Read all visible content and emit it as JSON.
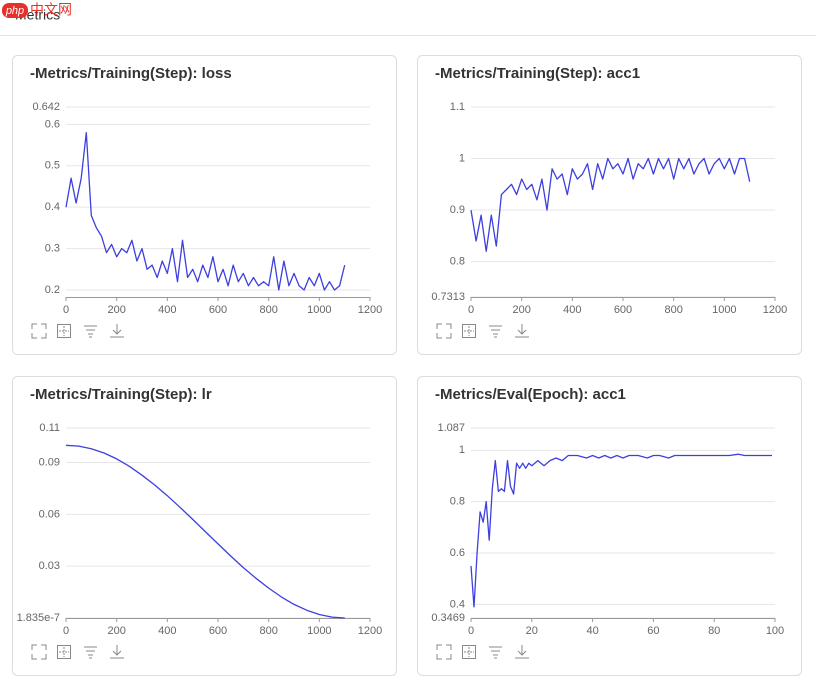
{
  "header": {
    "title": "Metrics",
    "watermark_logo": "php",
    "watermark_text": "中文网"
  },
  "chart_data": [
    {
      "type": "line",
      "title": "-Metrics/Training(Step): loss",
      "color": "#3d3fe0",
      "grid": true,
      "x": [
        0,
        20,
        40,
        60,
        80,
        100,
        120,
        140,
        160,
        180,
        200,
        220,
        240,
        260,
        280,
        300,
        320,
        340,
        360,
        380,
        400,
        420,
        440,
        460,
        480,
        500,
        520,
        540,
        560,
        580,
        600,
        620,
        640,
        660,
        680,
        700,
        720,
        740,
        760,
        780,
        800,
        820,
        840,
        860,
        880,
        900,
        920,
        940,
        960,
        980,
        1000,
        1020,
        1040,
        1060,
        1080,
        1100
      ],
      "values": [
        0.4,
        0.47,
        0.41,
        0.47,
        0.58,
        0.38,
        0.35,
        0.33,
        0.29,
        0.31,
        0.28,
        0.3,
        0.29,
        0.32,
        0.27,
        0.3,
        0.25,
        0.26,
        0.23,
        0.27,
        0.24,
        0.3,
        0.22,
        0.32,
        0.23,
        0.25,
        0.22,
        0.26,
        0.23,
        0.28,
        0.22,
        0.25,
        0.21,
        0.26,
        0.22,
        0.24,
        0.21,
        0.23,
        0.21,
        0.22,
        0.21,
        0.28,
        0.2,
        0.27,
        0.21,
        0.24,
        0.21,
        0.2,
        0.23,
        0.21,
        0.24,
        0.2,
        0.22,
        0.2,
        0.21,
        0.26
      ],
      "xlim": [
        0,
        1200
      ],
      "xticks": [
        0,
        200,
        400,
        600,
        800,
        1000,
        1200
      ],
      "ylim": [
        0.183,
        0.642
      ],
      "yticks": [
        0.2,
        0.3,
        0.4,
        0.5,
        0.6,
        0.642
      ]
    },
    {
      "type": "line",
      "title": "-Metrics/Training(Step): acc1",
      "color": "#3d3fe0",
      "grid": true,
      "x": [
        0,
        20,
        40,
        60,
        80,
        100,
        120,
        140,
        160,
        180,
        200,
        220,
        240,
        260,
        280,
        300,
        320,
        340,
        360,
        380,
        400,
        420,
        440,
        460,
        480,
        500,
        520,
        540,
        560,
        580,
        600,
        620,
        640,
        660,
        680,
        700,
        720,
        740,
        760,
        780,
        800,
        820,
        840,
        860,
        880,
        900,
        920,
        940,
        960,
        980,
        1000,
        1020,
        1040,
        1060,
        1080,
        1100
      ],
      "values": [
        0.9,
        0.84,
        0.89,
        0.82,
        0.89,
        0.83,
        0.93,
        0.94,
        0.95,
        0.93,
        0.96,
        0.94,
        0.95,
        0.92,
        0.96,
        0.9,
        0.98,
        0.96,
        0.97,
        0.93,
        0.98,
        0.96,
        0.97,
        0.99,
        0.94,
        0.99,
        0.96,
        1.0,
        0.98,
        0.99,
        0.97,
        1.0,
        0.96,
        0.99,
        0.98,
        1.0,
        0.97,
        1.0,
        0.98,
        1.0,
        0.96,
        1.0,
        0.98,
        1.0,
        0.97,
        0.99,
        1.0,
        0.97,
        0.99,
        1.0,
        0.98,
        1.0,
        0.97,
        1.0,
        1.0,
        0.955
      ],
      "xlim": [
        0,
        1200
      ],
      "xticks": [
        0,
        200,
        400,
        600,
        800,
        1000,
        1200
      ],
      "ylim": [
        0.7313,
        1.1
      ],
      "yticks": [
        0.7313,
        0.8,
        0.9,
        1,
        1.1
      ]
    },
    {
      "type": "line",
      "title": "-Metrics/Training(Step): lr",
      "color": "#3d3fe0",
      "grid": true,
      "x": [
        0,
        50,
        100,
        150,
        200,
        250,
        300,
        350,
        400,
        450,
        500,
        550,
        600,
        650,
        700,
        750,
        800,
        850,
        900,
        950,
        1000,
        1050,
        1100
      ],
      "values": [
        0.1,
        0.0995,
        0.098,
        0.0955,
        0.0921,
        0.0878,
        0.0827,
        0.077,
        0.0708,
        0.0641,
        0.0571,
        0.05,
        0.0429,
        0.0359,
        0.0292,
        0.023,
        0.0173,
        0.0122,
        0.0079,
        0.0045,
        0.002,
        0.0005,
        2e-07
      ],
      "xlim": [
        0,
        1200
      ],
      "xticks": [
        0,
        200,
        400,
        600,
        800,
        1000,
        1200
      ],
      "ylim": [
        1.835e-07,
        0.11
      ],
      "yticks": [
        1.835e-07,
        0.03,
        0.06,
        0.09,
        0.11
      ]
    },
    {
      "type": "line",
      "title": "-Metrics/Eval(Epoch): acc1",
      "color": "#3d3fe0",
      "grid": true,
      "x": [
        0,
        1,
        2,
        3,
        4,
        5,
        6,
        7,
        8,
        9,
        10,
        11,
        12,
        13,
        14,
        15,
        16,
        17,
        18,
        19,
        20,
        22,
        24,
        26,
        28,
        30,
        32,
        35,
        38,
        40,
        42,
        44,
        46,
        48,
        50,
        52,
        55,
        58,
        60,
        62,
        65,
        67,
        70,
        75,
        80,
        85,
        88,
        90,
        95,
        99
      ],
      "values": [
        0.55,
        0.39,
        0.6,
        0.76,
        0.72,
        0.8,
        0.65,
        0.85,
        0.96,
        0.84,
        0.85,
        0.84,
        0.96,
        0.86,
        0.83,
        0.95,
        0.93,
        0.95,
        0.93,
        0.95,
        0.94,
        0.96,
        0.94,
        0.96,
        0.97,
        0.96,
        0.98,
        0.98,
        0.97,
        0.98,
        0.97,
        0.98,
        0.97,
        0.98,
        0.97,
        0.98,
        0.98,
        0.97,
        0.98,
        0.98,
        0.97,
        0.98,
        0.98,
        0.98,
        0.98,
        0.98,
        0.985,
        0.98,
        0.98,
        0.98
      ],
      "xlim": [
        0,
        100
      ],
      "xticks": [
        0,
        20,
        40,
        60,
        80,
        100
      ],
      "ylim": [
        0.3469,
        1.087
      ],
      "yticks": [
        0.3469,
        0.4,
        0.6,
        0.8,
        1,
        1.087
      ]
    }
  ]
}
